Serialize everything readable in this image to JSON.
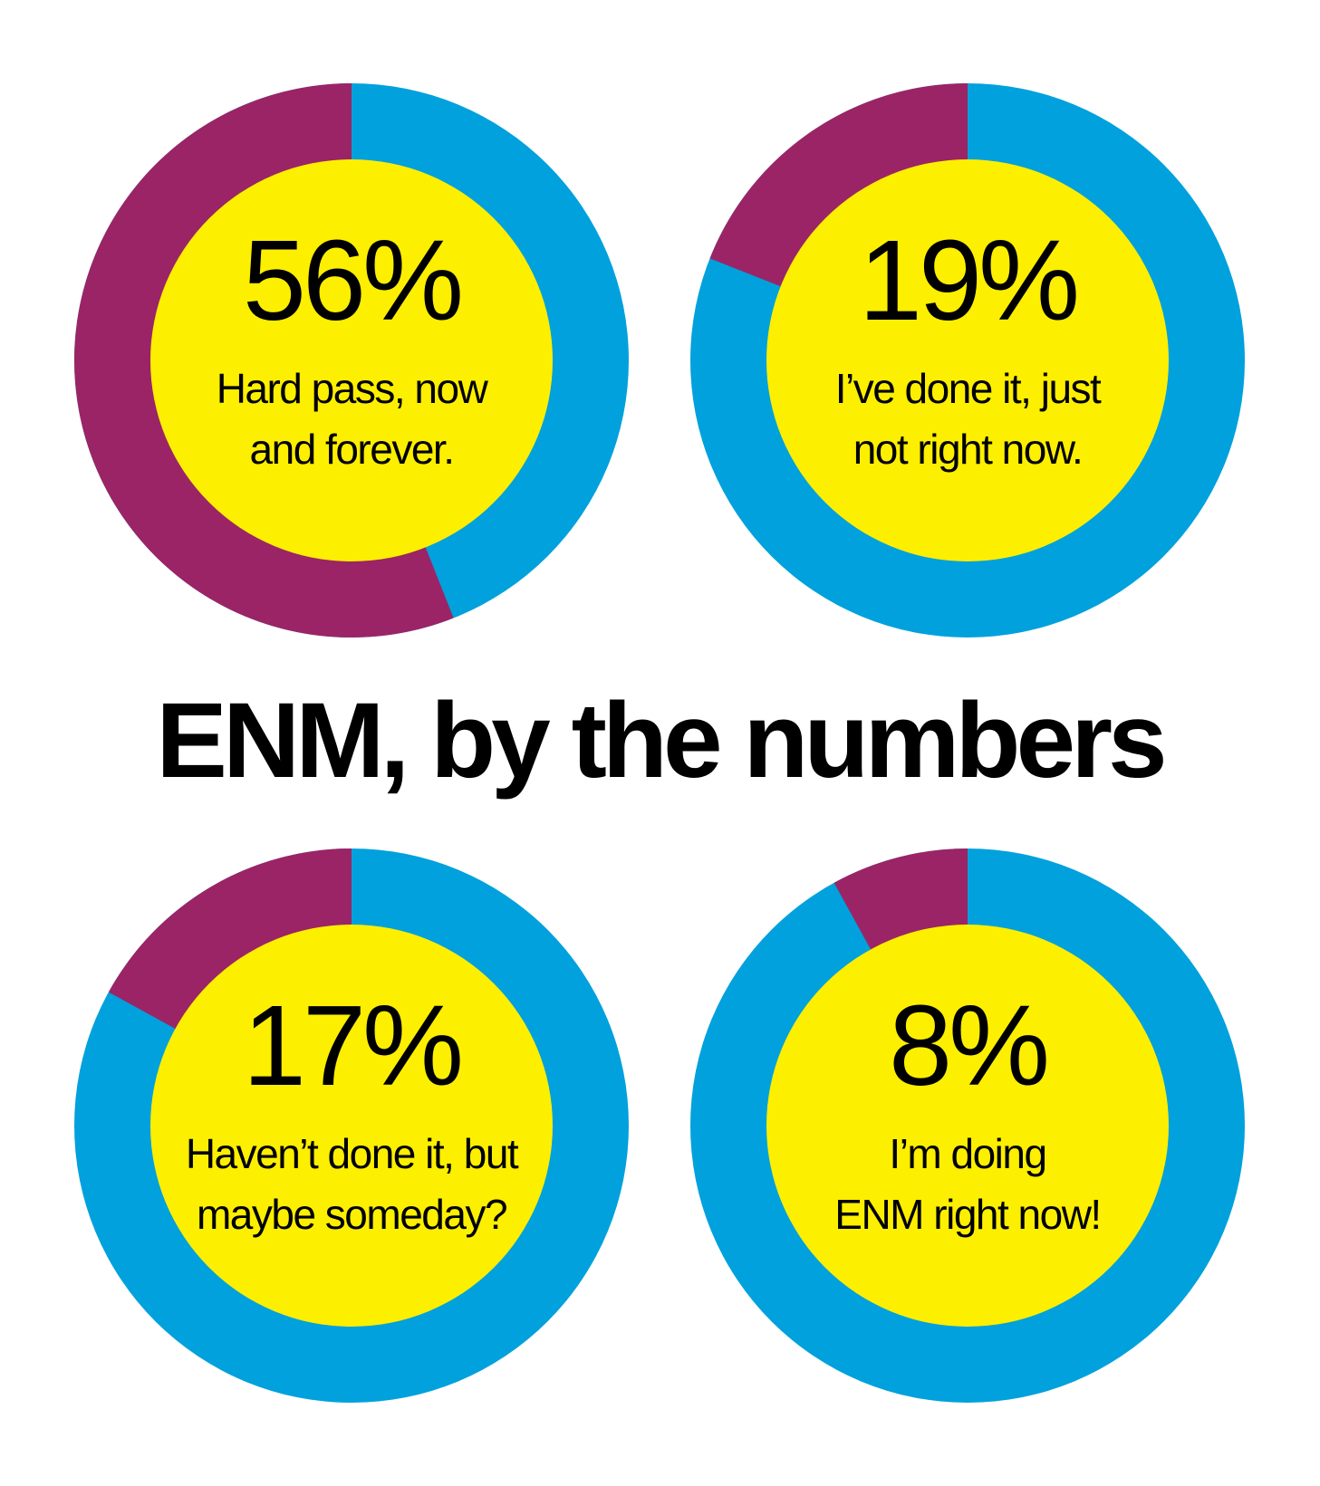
{
  "chart_data": {
    "type": "pie",
    "title": "ENM, by the numbers",
    "colors": {
      "highlight": "#9b2466",
      "remainder": "#00a1dc",
      "center": "#fdef00"
    },
    "items": [
      {
        "value": 56,
        "percent_label": "56%",
        "label_lines": [
          "Hard pass, now",
          "and forever."
        ]
      },
      {
        "value": 19,
        "percent_label": "19%",
        "label_lines": [
          "I’ve done it, just",
          "not right now."
        ]
      },
      {
        "value": 17,
        "percent_label": "17%",
        "label_lines": [
          "Haven’t done it, but",
          "maybe someday?"
        ]
      },
      {
        "value": 8,
        "percent_label": "8%",
        "label_lines": [
          "I’m doing",
          "ENM right now!"
        ]
      }
    ]
  }
}
